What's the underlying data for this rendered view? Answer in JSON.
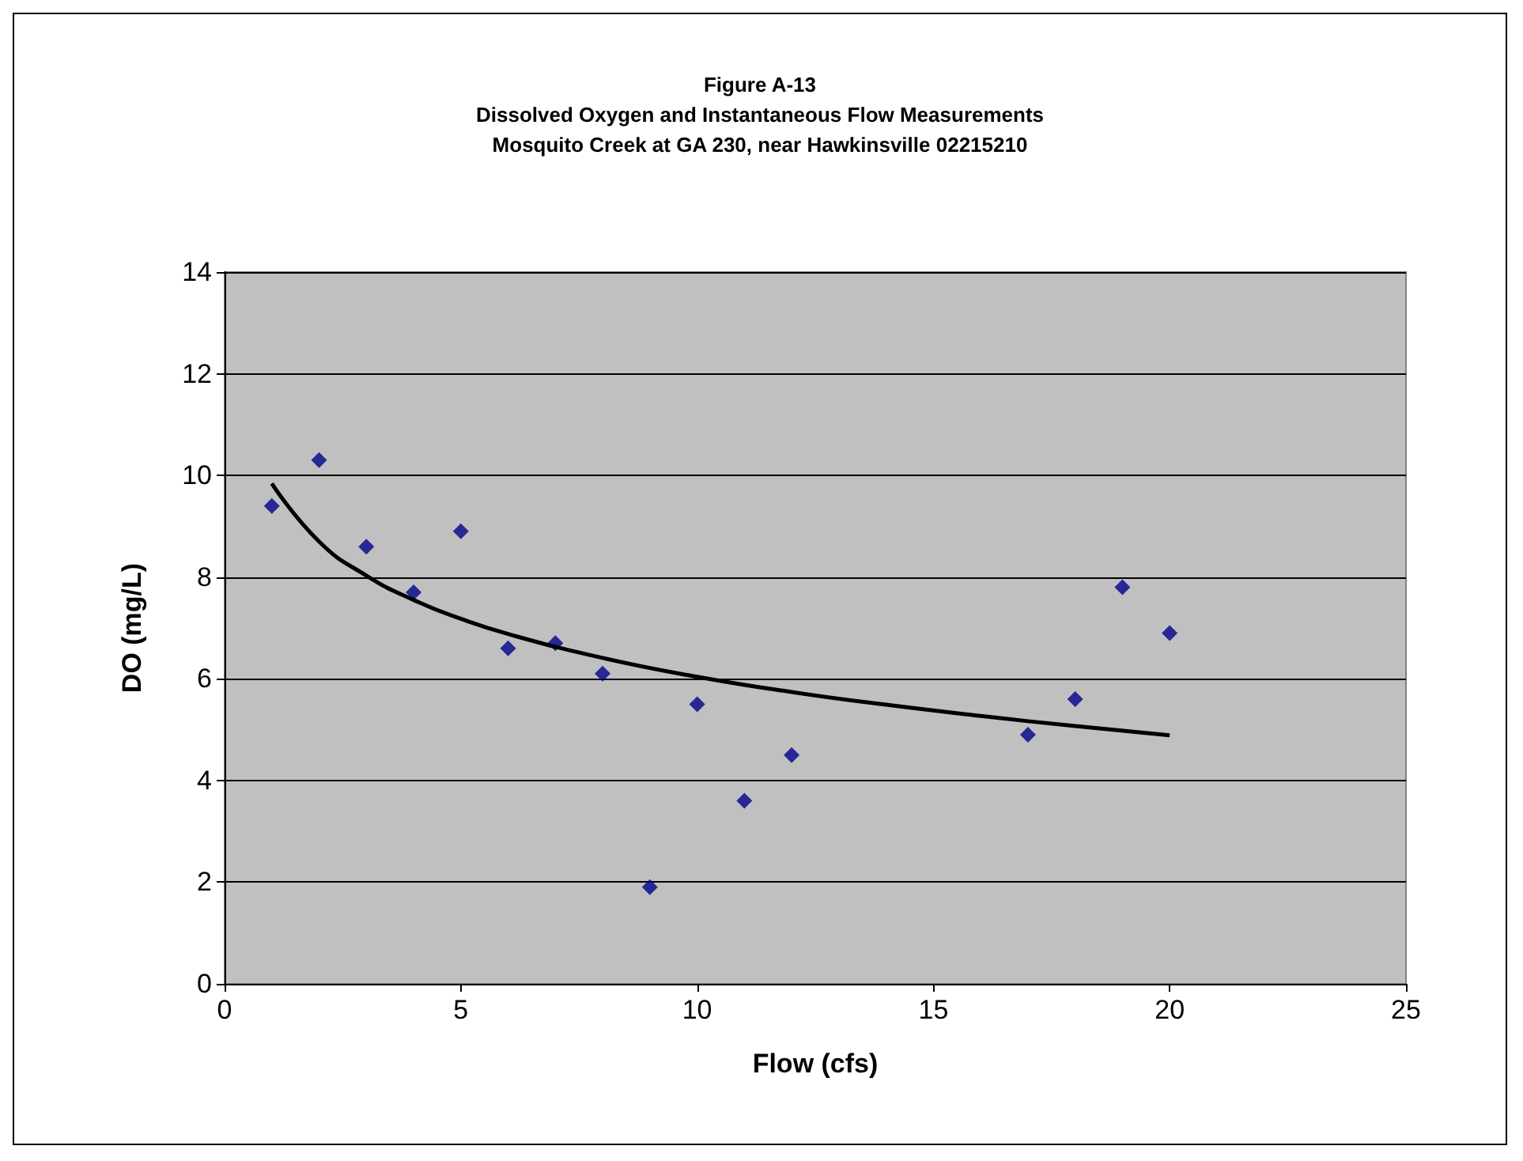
{
  "chart_data": {
    "type": "scatter",
    "title": "Figure A-13\nDissolved Oxygen and Instantaneous Flow Measurements\nMosquito Creek at GA 230, near Hawkinsville 02215210",
    "xlabel": "Flow (cfs)",
    "ylabel": "DO (mg/L)",
    "x": [
      1,
      2,
      3,
      4,
      5,
      6,
      7,
      8,
      9,
      10,
      11,
      12,
      17,
      18,
      19,
      20
    ],
    "series": [
      {
        "color": "#00008b",
        "values": [
          9.4,
          10.3,
          8.6,
          7.7,
          8.9,
          6.6,
          6.7,
          6.1,
          1.9,
          5.5,
          3.6,
          4.5,
          4.9,
          5.6,
          7.8,
          6.9
        ]
      },
      {
        "type": "line",
        "color": "#000000",
        "marker": "none",
        "x": [
          1,
          2,
          3,
          4,
          5,
          6,
          8,
          10,
          12,
          14,
          16,
          18,
          20
        ],
        "values": [
          9.84,
          8.7,
          8.03,
          7.55,
          7.18,
          6.88,
          6.41,
          6.04,
          5.74,
          5.49,
          5.27,
          5.07,
          4.89
        ]
      }
    ],
    "xlim": [
      0,
      25
    ],
    "xticks": [
      0,
      5,
      10,
      15,
      20,
      25
    ],
    "ylim": [
      0,
      14
    ],
    "yticks": [
      0,
      2,
      4,
      6,
      8,
      10,
      12,
      14
    ],
    "grid": "y",
    "marker": "diamond"
  }
}
